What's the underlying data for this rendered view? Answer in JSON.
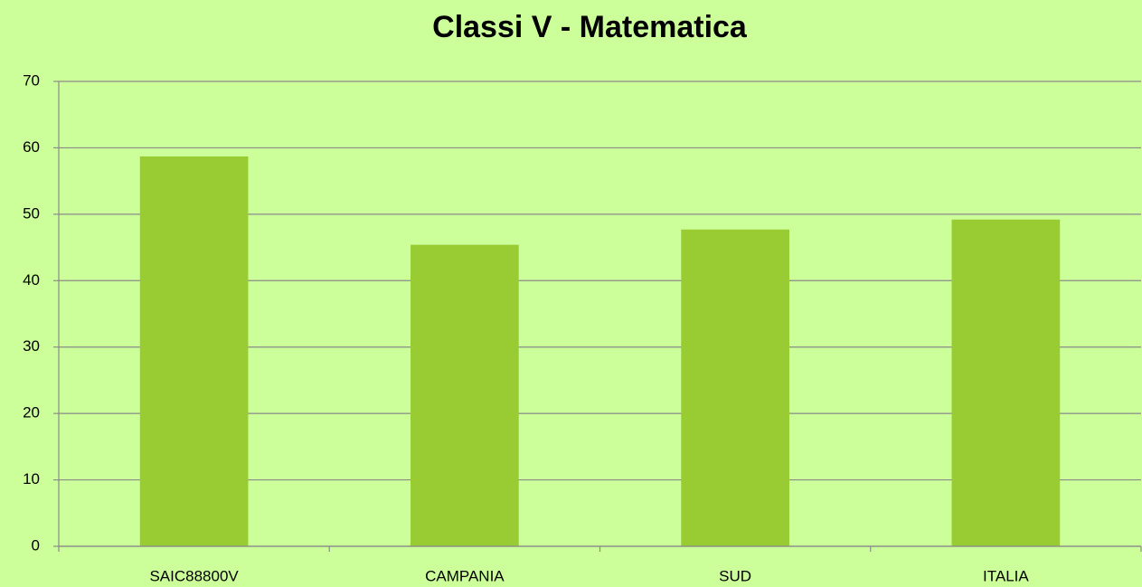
{
  "chart_data": {
    "type": "bar",
    "title": "Classi V - Matematica",
    "categories": [
      "SAIC88800V",
      "CAMPANIA",
      "SUD",
      "ITALIA"
    ],
    "values": [
      58.7,
      45.4,
      47.7,
      49.2
    ],
    "color": "#99cc33",
    "ylim": [
      0,
      70
    ],
    "yticks": [
      0,
      10,
      20,
      30,
      40,
      50,
      60,
      70
    ],
    "grid": true
  }
}
